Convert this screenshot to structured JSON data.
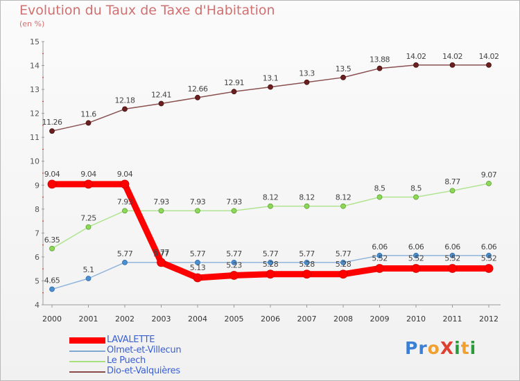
{
  "title": "Evolution du Taux de Taxe d'Habitation",
  "subtitle": "(en %)",
  "brand": {
    "text": "ProXiti",
    "letters": [
      "P",
      "r",
      "o",
      "X",
      "i",
      "t",
      "i"
    ],
    "colors": [
      "#3a7fd5",
      "#3a7fd5",
      "#f0a030",
      "#e04030",
      "#2a9a3a",
      "#f0a030",
      "#2a9a3a"
    ]
  },
  "chart_data": {
    "type": "line",
    "title": "Evolution du Taux de Taxe d'Habitation",
    "ylabel": "(en %)",
    "xlabel": "",
    "x": [
      "2000",
      "2001",
      "2002",
      "2003",
      "2004",
      "2005",
      "2006",
      "2007",
      "2008",
      "2009",
      "2010",
      "2011",
      "2012"
    ],
    "ylim": [
      4,
      15
    ],
    "yticks": [
      "4",
      "5",
      "6",
      "7",
      "8",
      "9",
      "10",
      "11",
      "12",
      "13",
      "14",
      "15"
    ],
    "grid": false,
    "legend_position": "bottom-left",
    "series": [
      {
        "name": "LAVALETTE",
        "color": "#ff0000",
        "values": [
          9.04,
          9.04,
          9.04,
          5.77,
          5.13,
          5.23,
          5.28,
          5.28,
          5.28,
          5.52,
          5.52,
          5.52,
          5.52
        ],
        "labels": [
          "9.04",
          "9.04",
          "9.04",
          "5.77",
          "5.13",
          "5.23",
          "5.28",
          "5.28",
          "5.28",
          "5.52",
          "5.52",
          "5.52",
          "5.52"
        ]
      },
      {
        "name": "Olmet-et-Villecun",
        "color": "#7fa8d0",
        "values": [
          4.65,
          5.1,
          5.77,
          5.77,
          5.77,
          5.77,
          5.77,
          5.77,
          5.77,
          6.06,
          6.06,
          6.06,
          6.06
        ],
        "labels": [
          "4.65",
          "5.1",
          "5.77",
          "5.77",
          "5.77",
          "5.77",
          "5.77",
          "5.77",
          "5.77",
          "6.06",
          "6.06",
          "6.06",
          "6.06"
        ]
      },
      {
        "name": "Le Puech",
        "color": "#a8e080",
        "values": [
          6.35,
          7.25,
          7.93,
          7.93,
          7.93,
          7.93,
          8.12,
          8.12,
          8.12,
          8.5,
          8.5,
          8.77,
          9.07
        ],
        "labels": [
          "6.35",
          "7.25",
          "7.93",
          "7.93",
          "7.93",
          "7.93",
          "8.12",
          "8.12",
          "8.12",
          "8.5",
          "8.5",
          "8.77",
          "9.07"
        ]
      },
      {
        "name": "Dio-et-Valquières",
        "color": "#8a4a4a",
        "values": [
          11.26,
          11.6,
          12.18,
          12.41,
          12.66,
          12.91,
          13.1,
          13.3,
          13.5,
          13.88,
          14.02,
          14.02,
          14.02
        ],
        "labels": [
          "11.26",
          "11.6",
          "12.18",
          "12.41",
          "12.66",
          "12.91",
          "13.1",
          "13.3",
          "13.5",
          "13.88",
          "14.02",
          "14.02",
          "14.02"
        ]
      }
    ]
  }
}
